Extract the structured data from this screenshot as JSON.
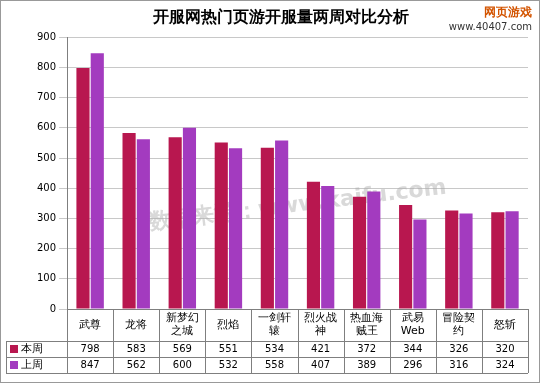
{
  "chart_data": {
    "type": "bar",
    "title": "开服网热门页游开服量两周对比分析",
    "categories": [
      "武尊",
      "龙将",
      "新梦幻之城",
      "烈焰",
      "一剑轩辕",
      "烈火战神",
      "热血海贼王",
      "武易Web",
      "冒险契约",
      "怒斩"
    ],
    "series": [
      {
        "name": "本周",
        "color": "#b8174f",
        "values": [
          798,
          583,
          569,
          551,
          534,
          421,
          372,
          344,
          326,
          320
        ]
      },
      {
        "name": "上周",
        "color": "#a33bbf",
        "values": [
          847,
          562,
          600,
          532,
          558,
          407,
          389,
          296,
          316,
          324
        ]
      }
    ],
    "ylim": [
      0,
      900
    ],
    "yticks": [
      0,
      100,
      200,
      300,
      400,
      500,
      600,
      700,
      800,
      900
    ],
    "grid": true,
    "annotations": [
      "数据来源：www.kaifu.com",
      "网页游戏",
      "www.40407.com"
    ]
  }
}
